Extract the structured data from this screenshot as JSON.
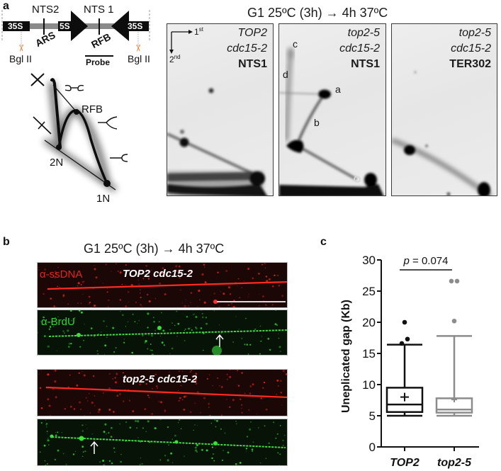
{
  "panel_a": {
    "letter": "a",
    "title": "G1 25ºC (3h) → 4h 37ºC",
    "map": {
      "left_35s": "35S",
      "nts2": "NTS2",
      "five_s": "5S",
      "nts1": "NTS 1",
      "right_35s": "35S",
      "ars": "ARS",
      "rfb": "RFB",
      "probe": "Probe",
      "bgl_left": "Bgl II",
      "bgl_right": "Bgl II"
    },
    "schematic": {
      "rfb": "RFB",
      "two_n": "2N",
      "one_n": "1N"
    },
    "axes": {
      "first": "1",
      "first_sup": "st",
      "second": "2",
      "second_sup": "nd"
    },
    "gels": [
      {
        "strain": "TOP2",
        "allele": "cdc15-2",
        "probe": "NTS1"
      },
      {
        "strain": "top2-5",
        "allele": "cdc15-2",
        "probe": "NTS1",
        "spots": {
          "a": "a",
          "b": "b",
          "c": "c",
          "d": "d"
        }
      },
      {
        "strain": "top2-5",
        "allele": "cdc15-2",
        "probe": "TER302"
      }
    ]
  },
  "panel_b": {
    "letter": "b",
    "title": "G1 25ºC (3h) → 4h 37ºC",
    "ssdna_label": "α-ssDNA",
    "brdu_label": "α-BrdU",
    "strain_1": "TOP2 cdc15-2",
    "strain_2": "top2-5 cdc15-2",
    "colors": {
      "ssdna": "#e3261c",
      "brdu": "#35d435"
    }
  },
  "panel_c": {
    "letter": "c"
  },
  "chart_data": {
    "type": "box",
    "title": "",
    "xlabel": "",
    "ylabel": "Uneplicated gap (Kb)",
    "ylim": [
      0,
      30
    ],
    "yticks": [
      0,
      5,
      10,
      15,
      20,
      25,
      30
    ],
    "categories": [
      "TOP2",
      "top2-5"
    ],
    "annotation": {
      "p_label": "p",
      "p_text": " = 0.074",
      "p_value": 0.074
    },
    "grid": false,
    "legend": "none",
    "series": [
      {
        "name": "TOP2",
        "color": "#111111",
        "whisker_low": 5.0,
        "q1": 5.6,
        "median": 6.8,
        "q3": 9.5,
        "whisker_high": 16.4,
        "mean": 8.0,
        "outliers": [
          16.6,
          17.3,
          20.0
        ]
      },
      {
        "name": "top2-5",
        "color": "#8c8c8c",
        "whisker_low": 5.0,
        "q1": 5.5,
        "median": 6.0,
        "q3": 7.8,
        "whisker_high": 17.8,
        "mean": 7.6,
        "outliers": [
          20.2,
          26.6,
          26.6
        ]
      }
    ]
  }
}
